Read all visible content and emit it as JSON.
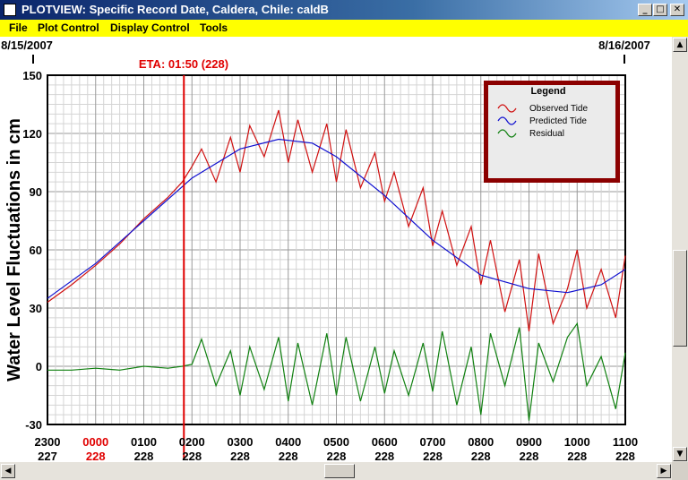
{
  "window": {
    "title": "PLOTVIEW: Specific Record Date, Caldera, Chile: caldB",
    "minimize_glyph": "_",
    "maximize_glyph": "□",
    "close_glyph": "✕"
  },
  "menu": {
    "items": [
      "File",
      "Plot Control",
      "Display Control",
      "Tools"
    ]
  },
  "plot": {
    "date_left": "8/15/2007",
    "date_right": "8/16/2007",
    "eta_label": "ETA: 01:50 (228)",
    "ylabel": "Water Level Fluctuations in cm",
    "yticks": [
      "150",
      "120",
      "90",
      "60",
      "30",
      "0",
      "-30"
    ],
    "xticks": [
      {
        "time": "2300",
        "day": "227",
        "highlight": false
      },
      {
        "time": "0000",
        "day": "228",
        "highlight": true
      },
      {
        "time": "0100",
        "day": "228",
        "highlight": false
      },
      {
        "time": "0200",
        "day": "228",
        "highlight": false
      },
      {
        "time": "0300",
        "day": "228",
        "highlight": false
      },
      {
        "time": "0400",
        "day": "228",
        "highlight": false
      },
      {
        "time": "0500",
        "day": "228",
        "highlight": false
      },
      {
        "time": "0600",
        "day": "228",
        "highlight": false
      },
      {
        "time": "0700",
        "day": "228",
        "highlight": false
      },
      {
        "time": "0800",
        "day": "228",
        "highlight": false
      },
      {
        "time": "0900",
        "day": "228",
        "highlight": false
      },
      {
        "time": "1000",
        "day": "228",
        "highlight": false
      },
      {
        "time": "1100",
        "day": "228",
        "highlight": false
      }
    ],
    "legend": {
      "title": "Legend",
      "items": [
        {
          "label": "Observed Tide",
          "color": "#d01010"
        },
        {
          "label": "Predicted Tide",
          "color": "#1010d0"
        },
        {
          "label": "Residual",
          "color": "#108010"
        }
      ]
    },
    "colors": {
      "eta": "#e00000",
      "highlight": "#e00000",
      "legend_border": "#8b0000"
    }
  },
  "chart_data": {
    "type": "line",
    "title": "",
    "xlabel": "",
    "ylabel": "Water Level Fluctuations in cm",
    "ylim": [
      -30,
      150
    ],
    "xlim_hours": [
      -1,
      11
    ],
    "x_note_units": "hours after 0000 on day 228",
    "eta_x": 1.833,
    "grid": true,
    "legend_position": "top-right",
    "series": [
      {
        "name": "Observed Tide",
        "x": [
          -1,
          -0.5,
          0,
          0.5,
          1,
          1.5,
          1.8,
          2,
          2.2,
          2.5,
          2.8,
          3,
          3.2,
          3.5,
          3.8,
          4,
          4.2,
          4.5,
          4.8,
          5,
          5.2,
          5.5,
          5.8,
          6,
          6.2,
          6.5,
          6.8,
          7,
          7.2,
          7.5,
          7.8,
          8,
          8.2,
          8.5,
          8.8,
          9,
          9.2,
          9.5,
          9.8,
          10,
          10.2,
          10.5,
          10.8,
          11
        ],
        "values": [
          33,
          42,
          52,
          63,
          76,
          87,
          95,
          103,
          112,
          95,
          118,
          100,
          124,
          108,
          132,
          105,
          127,
          100,
          125,
          95,
          122,
          92,
          110,
          85,
          100,
          72,
          92,
          62,
          80,
          52,
          72,
          42,
          65,
          28,
          55,
          18,
          58,
          22,
          40,
          60,
          30,
          50,
          25,
          57
        ]
      },
      {
        "name": "Predicted Tide",
        "x": [
          -1,
          0,
          1,
          2,
          3,
          3.8,
          4.5,
          5,
          6,
          7,
          8,
          9,
          9.8,
          10.5,
          11
        ],
        "values": [
          35,
          53,
          75,
          97,
          112,
          117,
          115,
          108,
          88,
          65,
          47,
          40,
          38,
          42,
          50
        ]
      },
      {
        "name": "Residual",
        "x": [
          -1,
          -0.5,
          0,
          0.5,
          1,
          1.5,
          1.8,
          2,
          2.2,
          2.5,
          2.8,
          3,
          3.2,
          3.5,
          3.8,
          4,
          4.2,
          4.5,
          4.8,
          5,
          5.2,
          5.5,
          5.8,
          6,
          6.2,
          6.5,
          6.8,
          7,
          7.2,
          7.5,
          7.8,
          8,
          8.2,
          8.5,
          8.8,
          9,
          9.2,
          9.5,
          9.8,
          10,
          10.2,
          10.5,
          10.8,
          11
        ],
        "values": [
          -2,
          -2,
          -1,
          -2,
          0,
          -1,
          0,
          1,
          14,
          -10,
          8,
          -15,
          10,
          -12,
          15,
          -18,
          12,
          -20,
          17,
          -15,
          15,
          -18,
          10,
          -14,
          8,
          -15,
          12,
          -13,
          18,
          -20,
          10,
          -25,
          17,
          -10,
          20,
          -28,
          12,
          -8,
          15,
          22,
          -10,
          5,
          -22,
          7
        ]
      }
    ]
  }
}
